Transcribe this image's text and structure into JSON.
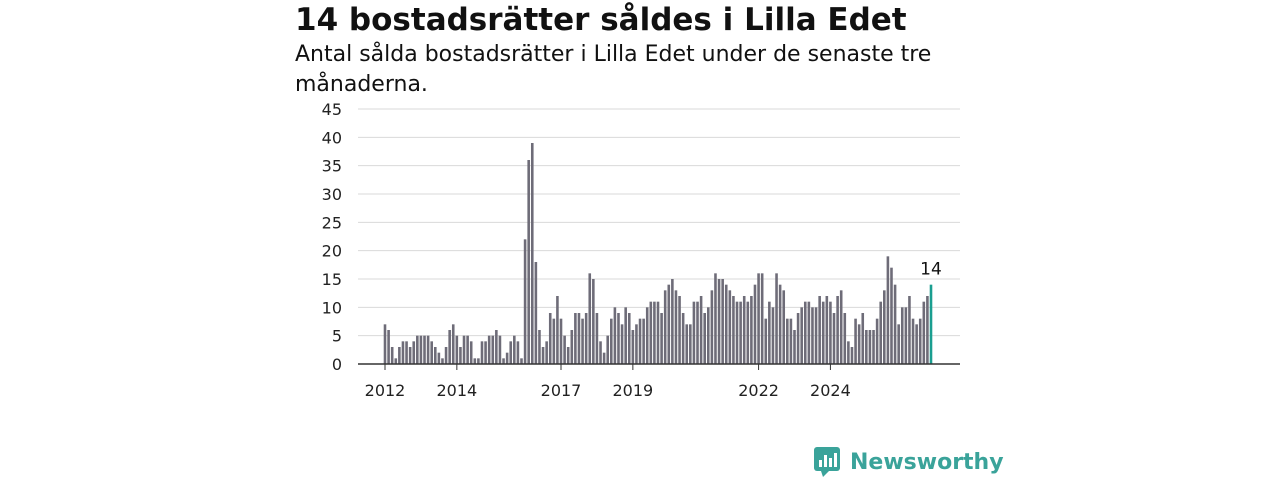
{
  "title": "14 bostadsrätter såldes i Lilla Edet",
  "subtitle": "Antal sålda bostadsrätter i Lilla Edet under de senaste tre månaderna.",
  "brand": {
    "name": "Newsworthy",
    "icon": "newsworthy-logo-icon"
  },
  "colors": {
    "bar": "#6e6c78",
    "highlight": "#1a9e90",
    "grid": "#d9d9d9",
    "brand": "#3aa39a"
  },
  "chart_data": {
    "type": "bar",
    "title": "14 bostadsrätter såldes i Lilla Edet",
    "xlabel": "",
    "ylabel": "",
    "ylim": [
      0,
      45
    ],
    "yticks": [
      0,
      5,
      10,
      15,
      20,
      25,
      30,
      35,
      40,
      45
    ],
    "grid": true,
    "x_tick_labels": [
      "2012",
      "2014",
      "2017",
      "2019",
      "2022",
      "2024"
    ],
    "x_tick_index": [
      0,
      20,
      49,
      69,
      104,
      124
    ],
    "highlight_label": "14",
    "values": [
      7,
      6,
      3,
      1,
      3,
      4,
      4,
      3,
      4,
      5,
      5,
      5,
      5,
      4,
      3,
      2,
      1,
      3,
      6,
      7,
      5,
      3,
      5,
      5,
      4,
      1,
      1,
      4,
      4,
      5,
      5,
      6,
      5,
      1,
      2,
      4,
      5,
      4,
      1,
      22,
      36,
      39,
      18,
      6,
      3,
      4,
      9,
      8,
      12,
      8,
      5,
      3,
      6,
      9,
      9,
      8,
      9,
      16,
      15,
      9,
      4,
      2,
      5,
      8,
      10,
      9,
      7,
      10,
      9,
      6,
      7,
      8,
      8,
      10,
      11,
      11,
      11,
      9,
      13,
      14,
      15,
      13,
      12,
      9,
      7,
      7,
      11,
      11,
      12,
      9,
      10,
      13,
      16,
      15,
      15,
      14,
      13,
      12,
      11,
      11,
      12,
      11,
      12,
      14,
      16,
      16,
      8,
      11,
      10,
      16,
      14,
      13,
      8,
      8,
      6,
      9,
      10,
      11,
      11,
      10,
      10,
      12,
      11,
      12,
      11,
      9,
      12,
      13,
      9,
      4,
      3,
      8,
      7,
      9,
      6,
      6,
      6,
      8,
      11,
      13,
      19,
      17,
      14,
      7,
      10,
      10,
      12,
      8,
      7,
      8,
      11,
      12,
      14
    ]
  }
}
